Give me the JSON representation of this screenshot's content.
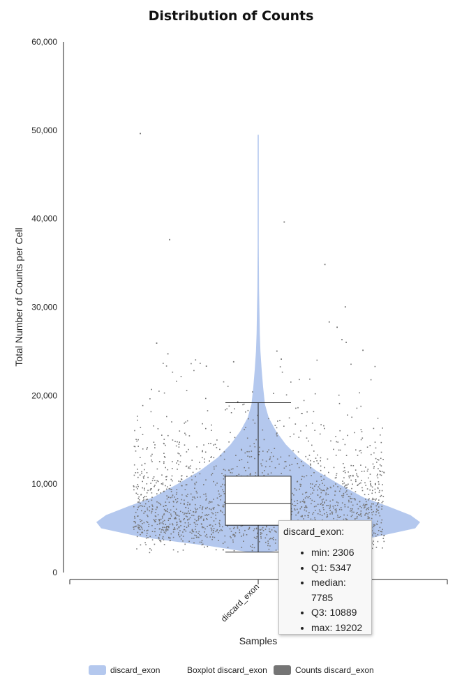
{
  "chart_data": {
    "type": "violin",
    "title": "Distribution of Counts",
    "xlabel": "Samples",
    "ylabel": "Total Number of Counts per Cell",
    "ylim": [
      0,
      60000
    ],
    "y_ticks": [
      "0",
      "10,000",
      "20,000",
      "30,000",
      "40,000",
      "50,000",
      "60,000"
    ],
    "categories": [
      "discard_exon"
    ],
    "series": [
      {
        "name": "discard_exon",
        "color": "#b4c8ee",
        "density_profile": [
          [
            2300,
            0.06
          ],
          [
            3000,
            0.3
          ],
          [
            4000,
            0.72
          ],
          [
            5000,
            0.97
          ],
          [
            5700,
            1.0
          ],
          [
            6500,
            0.94
          ],
          [
            7500,
            0.8
          ],
          [
            8500,
            0.65
          ],
          [
            10000,
            0.5
          ],
          [
            11500,
            0.36
          ],
          [
            13000,
            0.25
          ],
          [
            14500,
            0.17
          ],
          [
            16000,
            0.11
          ],
          [
            17500,
            0.065
          ],
          [
            19000,
            0.042
          ],
          [
            21000,
            0.03
          ],
          [
            23000,
            0.021
          ],
          [
            25000,
            0.014
          ],
          [
            27000,
            0.01
          ],
          [
            29000,
            0.008
          ],
          [
            32000,
            0.005
          ],
          [
            37000,
            0.003
          ],
          [
            43000,
            0.003
          ],
          [
            49500,
            0.0
          ]
        ]
      },
      {
        "name": "Boxplot discard_exon",
        "min": 2306,
        "q1": 5347,
        "median": 7785,
        "q3": 10889,
        "max": 19202
      },
      {
        "name": "Counts discard_exon",
        "color": "#757575",
        "outliers": [
          49700,
          39700,
          37700,
          34900,
          30100,
          28400,
          27800,
          26400,
          26100,
          26000,
          25200,
          25100,
          24800,
          24200,
          23900,
          23400
        ]
      }
    ],
    "legend_position": "bottom",
    "tooltip": {
      "title": "discard_exon:",
      "items": [
        "min: 2306",
        "Q1: 5347",
        "median: 7785",
        "Q3: 10889",
        "max: 19202"
      ]
    }
  }
}
